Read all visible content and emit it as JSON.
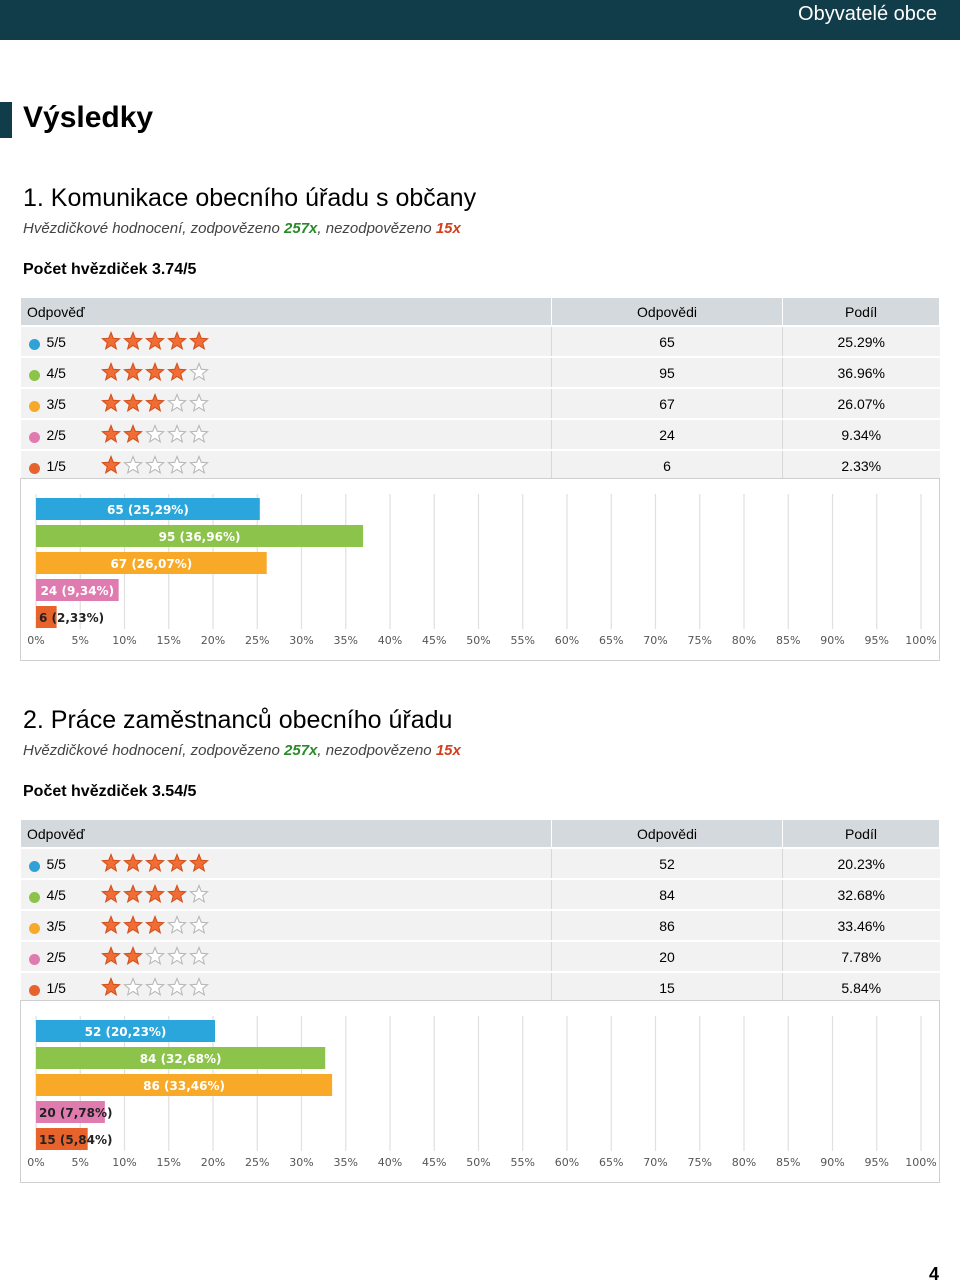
{
  "header": {
    "title": "Obyvatelé obce"
  },
  "section_title": "Výsledky",
  "table_headers": {
    "answer": "Odpověď",
    "count": "Odpovědi",
    "share": "Podíl"
  },
  "questions": [
    {
      "title": "1. Komunikace obecního úřadu s občany",
      "subtitle_prefix": "Hvězdičkové hodnocení, zodpovězeno ",
      "answered": "257x",
      "subtitle_mid": ", nezodpovězeno ",
      "unanswered": "15x",
      "average_label": "Počet hvězdiček 3.74/5",
      "rows": [
        {
          "label": "5/5",
          "stars": 5,
          "count": "65",
          "share": "25.29%",
          "color": "#2fa3d7"
        },
        {
          "label": "4/5",
          "stars": 4,
          "count": "95",
          "share": "36.96%",
          "color": "#8cc34b"
        },
        {
          "label": "3/5",
          "stars": 3,
          "count": "67",
          "share": "26.07%",
          "color": "#f8a928"
        },
        {
          "label": "2/5",
          "stars": 2,
          "count": "24",
          "share": "9.34%",
          "color": "#e07bb0"
        },
        {
          "label": "1/5",
          "stars": 1,
          "count": "6",
          "share": "2.33%",
          "color": "#e8632c"
        }
      ]
    },
    {
      "title": "2. Práce zaměstnanců obecního úřadu",
      "subtitle_prefix": "Hvězdičkové hodnocení, zodpovězeno ",
      "answered": "257x",
      "subtitle_mid": ", nezodpovězeno ",
      "unanswered": "15x",
      "average_label": "Počet hvězdiček 3.54/5",
      "rows": [
        {
          "label": "5/5",
          "stars": 5,
          "count": "52",
          "share": "20.23%",
          "color": "#2fa3d7"
        },
        {
          "label": "4/5",
          "stars": 4,
          "count": "84",
          "share": "32.68%",
          "color": "#8cc34b"
        },
        {
          "label": "3/5",
          "stars": 3,
          "count": "86",
          "share": "33.46%",
          "color": "#f8a928"
        },
        {
          "label": "2/5",
          "stars": 2,
          "count": "20",
          "share": "7.78%",
          "color": "#e07bb0"
        },
        {
          "label": "1/5",
          "stars": 1,
          "count": "15",
          "share": "5.84%",
          "color": "#e8632c"
        }
      ]
    }
  ],
  "chart_data": [
    {
      "type": "bar",
      "orientation": "horizontal",
      "categories": [
        "5/5",
        "4/5",
        "3/5",
        "2/5",
        "1/5"
      ],
      "values": [
        25.29,
        36.96,
        26.07,
        9.34,
        2.33
      ],
      "bar_labels": [
        "65 (25,29%)",
        "95 (36,96%)",
        "67 (26,07%)",
        "24 (9,34%)",
        "6 (2,33%)"
      ],
      "colors": [
        "#2aa6dc",
        "#8cc34b",
        "#f8a928",
        "#e07bb0",
        "#e8632c"
      ],
      "xlim": [
        0,
        100
      ],
      "x_ticks": [
        "0%",
        "5%",
        "10%",
        "15%",
        "20%",
        "25%",
        "30%",
        "35%",
        "40%",
        "45%",
        "50%",
        "55%",
        "60%",
        "65%",
        "70%",
        "75%",
        "80%",
        "85%",
        "90%",
        "95%",
        "100%"
      ],
      "grid": true
    },
    {
      "type": "bar",
      "orientation": "horizontal",
      "categories": [
        "5/5",
        "4/5",
        "3/5",
        "2/5",
        "1/5"
      ],
      "values": [
        20.23,
        32.68,
        33.46,
        7.78,
        5.84
      ],
      "bar_labels": [
        "52 (20,23%)",
        "84 (32,68%)",
        "86 (33,46%)",
        "20 (7,78%)",
        "15 (5,84%)"
      ],
      "colors": [
        "#2aa6dc",
        "#8cc34b",
        "#f8a928",
        "#e07bb0",
        "#e8632c"
      ],
      "xlim": [
        0,
        100
      ],
      "x_ticks": [
        "0%",
        "5%",
        "10%",
        "15%",
        "20%",
        "25%",
        "30%",
        "35%",
        "40%",
        "45%",
        "50%",
        "55%",
        "60%",
        "65%",
        "70%",
        "75%",
        "80%",
        "85%",
        "90%",
        "95%",
        "100%"
      ],
      "grid": true
    }
  ],
  "page_number": "4"
}
